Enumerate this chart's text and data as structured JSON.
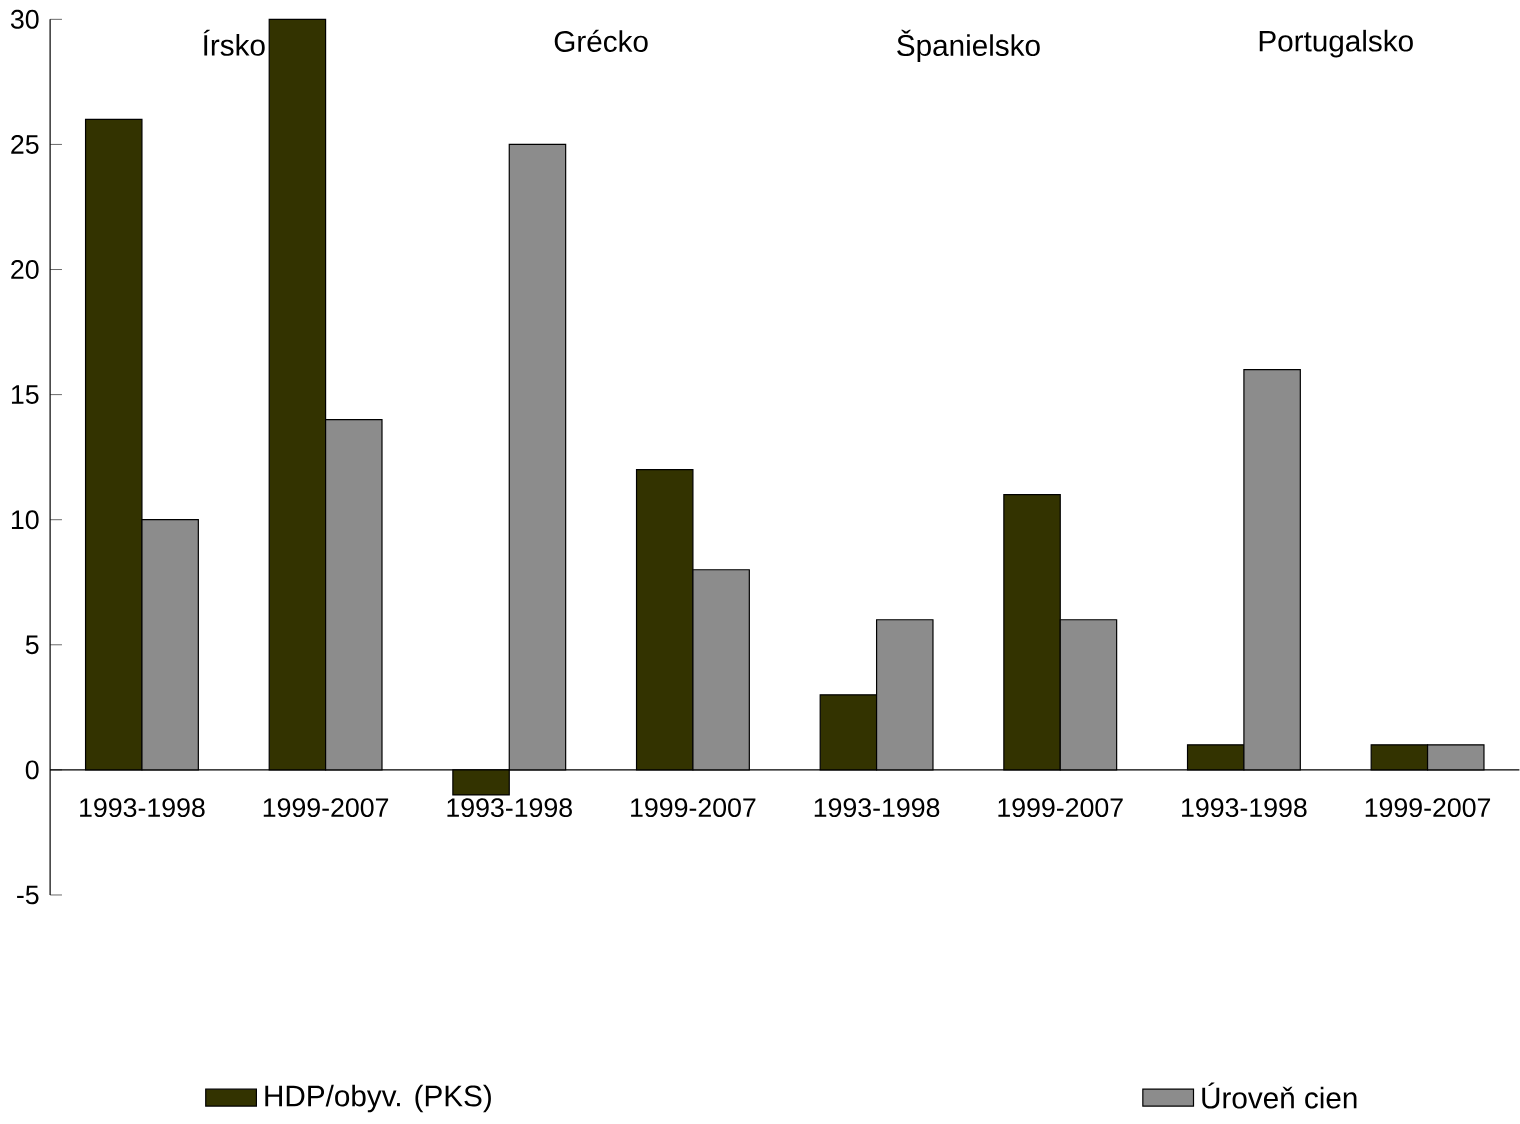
{
  "chart_data": {
    "type": "bar",
    "categories": [
      "1993-1998",
      "1999-2007",
      "1993-1998",
      "1999-2007",
      "1993-1998",
      "1999-2007",
      "1993-1998",
      "1999-2007"
    ],
    "series": [
      {
        "name": "HDP/obyv. (PKS)",
        "color": "#333300",
        "values": [
          26,
          30,
          -1,
          12,
          3,
          11,
          1,
          1
        ]
      },
      {
        "name": "Úroveň cien",
        "color": "#8c8c8c",
        "values": [
          10,
          14,
          25,
          8,
          6,
          6,
          16,
          1
        ]
      }
    ],
    "annotations": [
      "Írsko",
      "Grécko",
      "Španielsko",
      "Portugalsko"
    ],
    "ylim": [
      -5,
      30
    ],
    "yticks": [
      -5,
      0,
      5,
      10,
      15,
      20,
      25,
      30
    ],
    "grid": false,
    "legend": "bottom"
  }
}
